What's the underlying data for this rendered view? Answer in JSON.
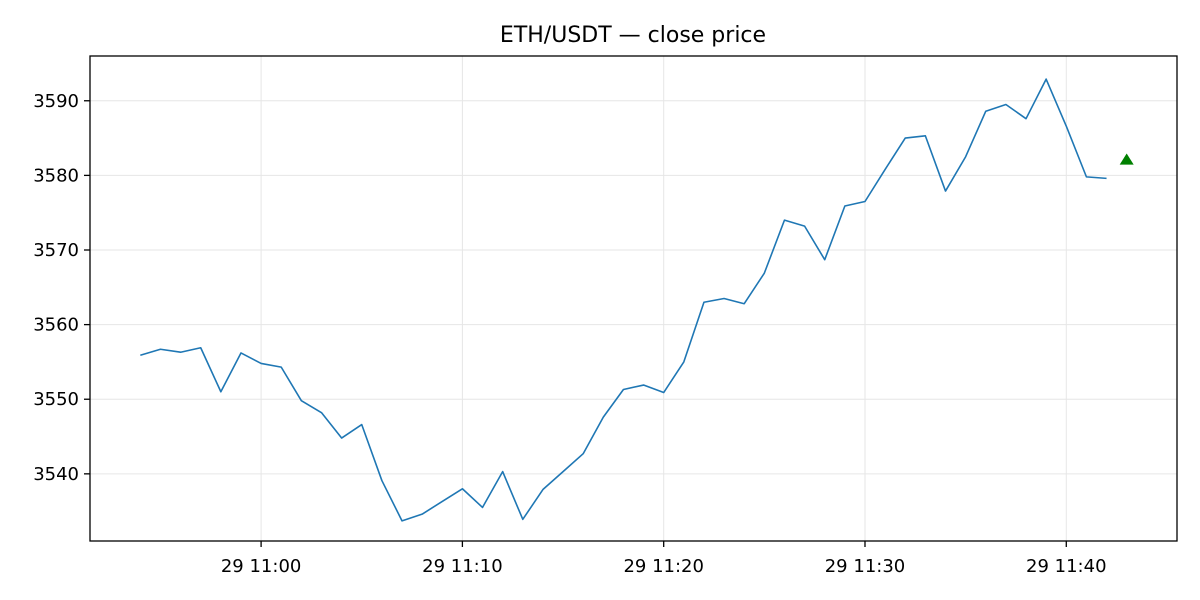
{
  "chart_data": {
    "type": "line",
    "title": "ETH/USDT — close price",
    "xlabel": "",
    "ylabel": "",
    "grid": true,
    "x_start": "2024-xx-29 10:54",
    "x_step_minutes": 1,
    "x": [
      "10:54",
      "10:55",
      "10:56",
      "10:57",
      "10:58",
      "10:59",
      "11:00",
      "11:01",
      "11:02",
      "11:03",
      "11:04",
      "11:05",
      "11:06",
      "11:07",
      "11:08",
      "11:09",
      "11:10",
      "11:11",
      "11:12",
      "11:13",
      "11:14",
      "11:15",
      "11:16",
      "11:17",
      "11:18",
      "11:19",
      "11:20",
      "11:21",
      "11:22",
      "11:23",
      "11:24",
      "11:25",
      "11:26",
      "11:27",
      "11:28",
      "11:29",
      "11:30",
      "11:31",
      "11:32",
      "11:33",
      "11:34",
      "11:35",
      "11:36",
      "11:37",
      "11:38",
      "11:39",
      "11:40",
      "11:41",
      "11:42"
    ],
    "series": [
      {
        "name": "",
        "color": "#1f77b4",
        "values": [
          3555.9,
          3556.7,
          3556.3,
          3556.9,
          3551.0,
          3556.2,
          3554.8,
          3554.3,
          3549.8,
          3548.2,
          3544.8,
          3546.6,
          3539.1,
          3533.7,
          3534.6,
          3536.3,
          3538.0,
          3535.5,
          3540.3,
          3533.9,
          3537.9,
          3540.3,
          3542.7,
          3547.6,
          3551.3,
          3551.9,
          3550.9,
          3555.0,
          3563.0,
          3563.5,
          3562.8,
          3566.9,
          3574.0,
          3573.2,
          3568.7,
          3575.9,
          3576.5,
          3580.8,
          3585.0,
          3585.3,
          3577.9,
          3582.5,
          3588.6,
          3589.5,
          3587.6,
          3592.9,
          3586.6,
          3579.8,
          3579.6
        ]
      }
    ],
    "marker": {
      "x": "11:43",
      "y": 3582.0,
      "shape": "triangle-up",
      "color": "#008000"
    },
    "xticks": [
      {
        "x": "11:00",
        "label": "29 11:00"
      },
      {
        "x": "11:10",
        "label": "29 11:10"
      },
      {
        "x": "11:20",
        "label": "29 11:20"
      },
      {
        "x": "11:30",
        "label": "29 11:30"
      },
      {
        "x": "11:40",
        "label": "29 11:40"
      }
    ],
    "yticks": [
      3540,
      3550,
      3560,
      3570,
      3580,
      3590
    ],
    "xlim": [
      "10:51.5",
      "11:45.5"
    ],
    "ylim": [
      3531,
      3596
    ]
  }
}
